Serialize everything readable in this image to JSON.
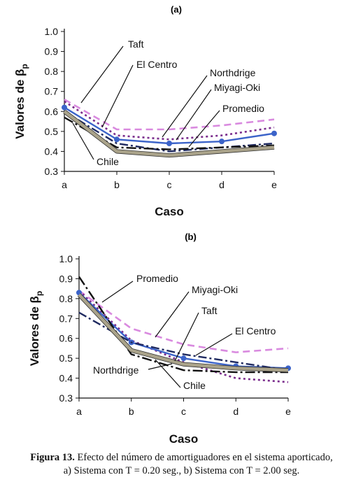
{
  "caption": {
    "label": "Figura 13.",
    "line1": "Efecto del número de amortiguadores en el sistema aporticado,",
    "line2": "a) Sistema con T = 0.20 seg., b) Sistema con T = 2.00 seg."
  },
  "styles": {
    "Taft": {
      "color": "#d98adf",
      "dash": "10,6",
      "width": 2.6,
      "marker": false
    },
    "El Centro": {
      "color": "#7a2c8c",
      "dash": "3,4",
      "width": 2.6,
      "marker": false
    },
    "Northdrige": {
      "color": "#3b63c9",
      "dash": "",
      "width": 2.4,
      "marker": true
    },
    "Miyagi-Oki": {
      "color": "#1f2a60",
      "dash": "12,4,3,4",
      "width": 2.4,
      "marker": false
    },
    "Promedio": {
      "color": "#111111",
      "dash": "14,4,3,4",
      "width": 2.4,
      "marker": false
    },
    "Chile": {
      "color": "#aaa38a",
      "dash": "",
      "width": 4.5,
      "marker": false,
      "outline": true
    }
  },
  "chart_data": [
    {
      "type": "line",
      "panel": "(a)",
      "xlabel": "Caso",
      "ylabel": "Valores de β",
      "ylabel_sub": "p",
      "categories": [
        "a",
        "b",
        "c",
        "d",
        "e"
      ],
      "ylim": [
        0.3,
        1.0
      ],
      "yticks": [
        "0.3",
        "0.4",
        "0.5",
        "0.6",
        "0.7",
        "0.8",
        "0.9",
        "1.0"
      ],
      "series": [
        {
          "name": "Taft",
          "values": [
            0.66,
            0.51,
            0.51,
            0.53,
            0.56
          ]
        },
        {
          "name": "El Centro",
          "values": [
            0.65,
            0.48,
            0.46,
            0.48,
            0.52
          ]
        },
        {
          "name": "Northdrige",
          "values": [
            0.62,
            0.46,
            0.44,
            0.45,
            0.49
          ]
        },
        {
          "name": "Miyagi-Oki",
          "values": [
            0.6,
            0.44,
            0.4,
            0.42,
            0.44
          ]
        },
        {
          "name": "Promedio",
          "values": [
            0.57,
            0.42,
            0.41,
            0.42,
            0.43
          ]
        },
        {
          "name": "Chile",
          "values": [
            0.6,
            0.4,
            0.38,
            0.4,
            0.42
          ]
        }
      ],
      "annotations": [
        {
          "text": "Taft",
          "series": "Taft"
        },
        {
          "text": "El Centro",
          "series": "El Centro"
        },
        {
          "text": "Northdrige",
          "series": "Northdrige"
        },
        {
          "text": "Miyagi-Oki",
          "series": "Miyagi-Oki"
        },
        {
          "text": "Promedio",
          "series": "Promedio"
        },
        {
          "text": "Chile",
          "series": "Chile"
        }
      ]
    },
    {
      "type": "line",
      "panel": "(b)",
      "xlabel": "Caso",
      "ylabel": "Valores de β",
      "ylabel_sub": "p",
      "categories": [
        "a",
        "b",
        "c",
        "d",
        "e"
      ],
      "ylim": [
        0.3,
        1.0
      ],
      "yticks": [
        "0.3",
        "0.4",
        "0.5",
        "0.6",
        "0.7",
        "0.8",
        "0.9",
        "1.0"
      ],
      "series": [
        {
          "name": "Taft",
          "values": [
            0.84,
            0.65,
            0.57,
            0.53,
            0.55
          ]
        },
        {
          "name": "El Centro",
          "values": [
            0.84,
            0.59,
            0.48,
            0.4,
            0.38
          ]
        },
        {
          "name": "Northdrige",
          "values": [
            0.83,
            0.58,
            0.5,
            0.46,
            0.45
          ]
        },
        {
          "name": "Miyagi-Oki",
          "values": [
            0.73,
            0.58,
            0.52,
            0.48,
            0.44
          ]
        },
        {
          "name": "Promedio",
          "values": [
            0.91,
            0.52,
            0.44,
            0.43,
            0.43
          ]
        },
        {
          "name": "Chile",
          "values": [
            0.82,
            0.54,
            0.47,
            0.45,
            0.44
          ]
        }
      ],
      "annotations": [
        {
          "text": "Promedio",
          "series": "Promedio"
        },
        {
          "text": "Miyagi-Oki",
          "series": "Miyagi-Oki"
        },
        {
          "text": "Taft",
          "series": "Taft"
        },
        {
          "text": "El Centro",
          "series": "El Centro"
        },
        {
          "text": "Northdrige",
          "series": "Northdrige"
        },
        {
          "text": "Chile",
          "series": "Chile"
        }
      ]
    }
  ]
}
